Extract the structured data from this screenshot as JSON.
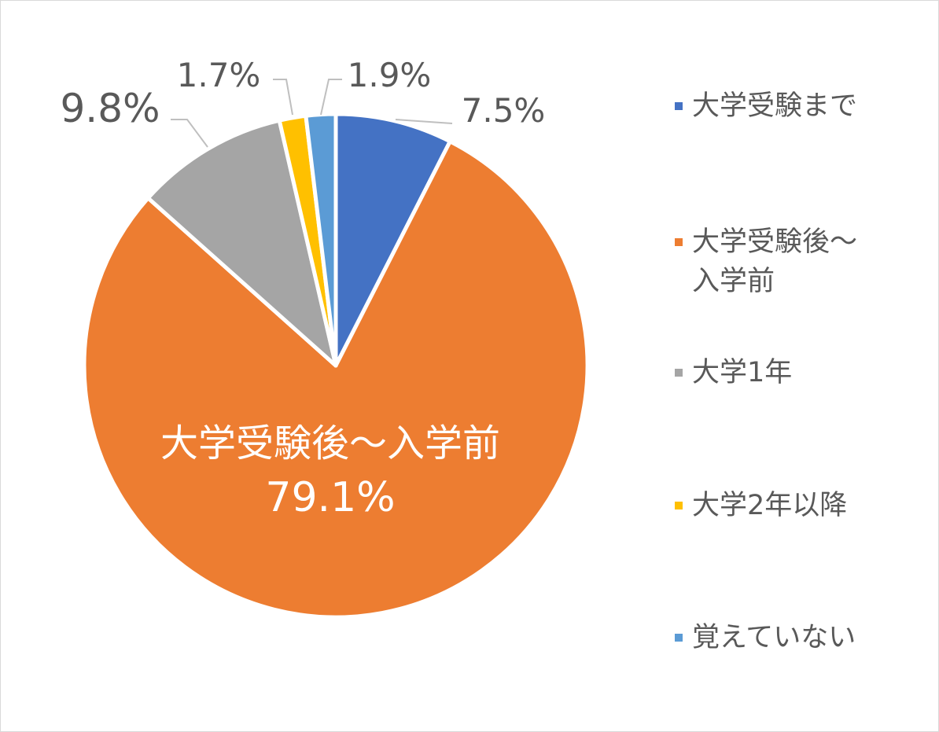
{
  "chart_data": {
    "type": "pie",
    "slices": [
      {
        "label": "大学受験まで",
        "value": 7.5,
        "value_label": "7.5%",
        "color": "#4472C4"
      },
      {
        "label": "大学受験後～\n入学前",
        "value": 79.1,
        "value_label": "79.1%",
        "color": "#ED7D31",
        "inside_label": "大学受験後～入学前"
      },
      {
        "label": "大学1年",
        "value": 9.8,
        "value_label": "9.8%",
        "color": "#A5A5A5"
      },
      {
        "label": "大学2年以降",
        "value": 1.7,
        "value_label": "1.7%",
        "color": "#FFC000"
      },
      {
        "label": "覚えていない",
        "value": 1.9,
        "value_label": "1.9%",
        "color": "#5B9BD5"
      }
    ],
    "start_angle_deg": 0,
    "direction": "clockwise",
    "legend_position": "right",
    "label_color_outside": "#595959",
    "label_color_inside": "#ffffff"
  }
}
